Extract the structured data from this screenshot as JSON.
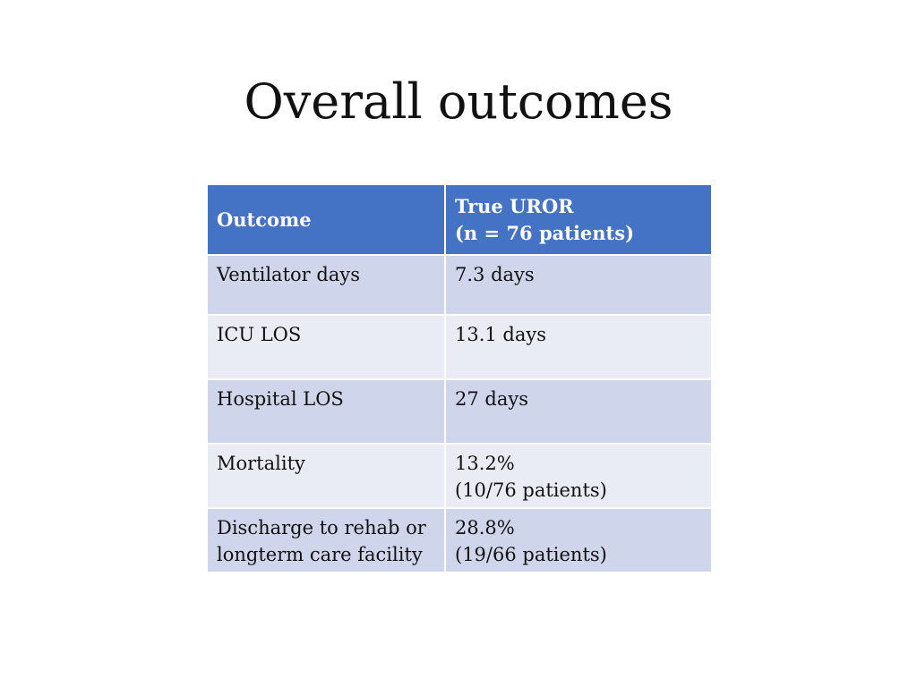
{
  "slide": {
    "title": "Overall outcomes"
  },
  "table": {
    "headers": [
      "Outcome",
      "True UROR",
      "(n = 76 patients)"
    ],
    "rows": [
      {
        "outcome": [
          "Ventilator days",
          ""
        ],
        "value": [
          "7.3 days",
          ""
        ]
      },
      {
        "outcome": [
          "ICU LOS",
          ""
        ],
        "value": [
          "13.1 days",
          ""
        ]
      },
      {
        "outcome": [
          "Hospital LOS",
          ""
        ],
        "value": [
          "27 days",
          ""
        ]
      },
      {
        "outcome": [
          "Mortality",
          ""
        ],
        "value": [
          "13.2%",
          "(10/76 patients)"
        ]
      },
      {
        "outcome": [
          "Discharge to rehab or",
          "longterm care facility"
        ],
        "value": [
          "28.8%",
          "(19/66 patients)"
        ]
      }
    ]
  },
  "colors": {
    "header_bg": "#4472c4",
    "row_odd_bg": "#cfd5ea",
    "row_even_bg": "#e9ebf5"
  }
}
